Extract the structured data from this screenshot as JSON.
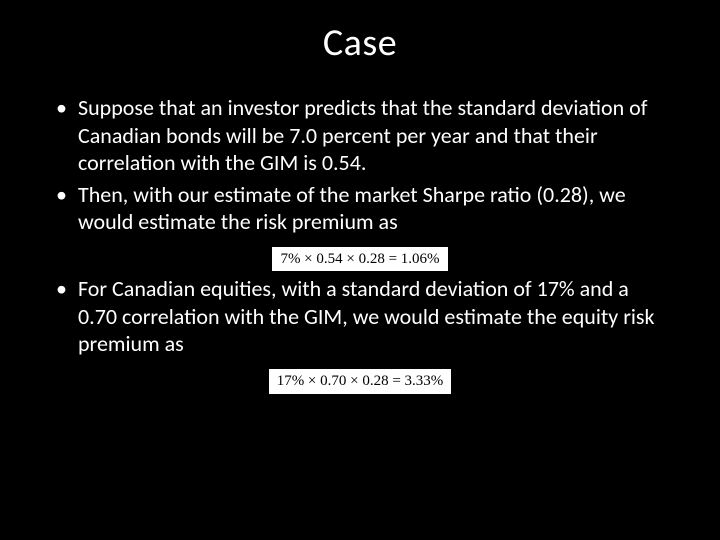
{
  "background_color": "#000000",
  "text_color": "#ffffff",
  "formula_bg": "#ffffff",
  "formula_fg": "#000000",
  "title": "Case",
  "title_fontsize": 38,
  "body_fontsize": 22,
  "formula_fontsize": 15,
  "bullets": [
    "Suppose that an investor predicts that the standard deviation of Canadian bonds will be 7.0 percent per year and that their correlation with the GIM is 0.54.",
    "Then, with our estimate of the market Sharpe ratio (0.28), we would estimate the risk premium as",
    "For Canadian equities, with a standard deviation of 17% and a 0.70 correlation with the GIM, we would estimate the equity risk premium as"
  ],
  "formulas": [
    "7% × 0.54 × 0.28 = 1.06%",
    "17% × 0.70 × 0.28 = 3.33%"
  ]
}
